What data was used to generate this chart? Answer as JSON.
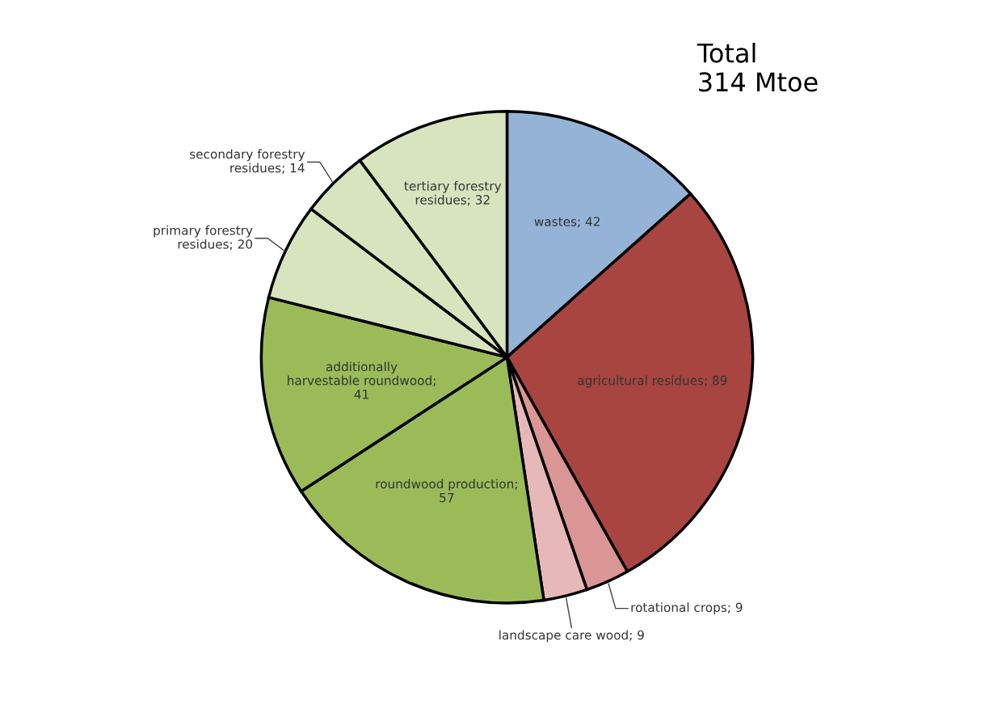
{
  "chart_data": {
    "type": "pie",
    "categories": [
      "wastes; 42",
      "agricultural residues; 89",
      "rotational crops; 9",
      "landscape care wood; 9",
      "roundwood production; 57",
      "additionally harvestable roundwood; 41",
      "primary forestry residues; 20",
      "secondary forestry residues; 14",
      "tertiary forestry residues; 32"
    ],
    "values": [
      42,
      89,
      9,
      9,
      57,
      41,
      20,
      14,
      32
    ],
    "colors": [
      "#95b3d7",
      "#a84541",
      "#d99694",
      "#e6b9b8",
      "#9bbb59",
      "#9bbb59",
      "#d7e4bd",
      "#d7e4bd",
      "#d7e4bd"
    ],
    "annotations": [
      "Total\n314 Mtoe"
    ]
  }
}
